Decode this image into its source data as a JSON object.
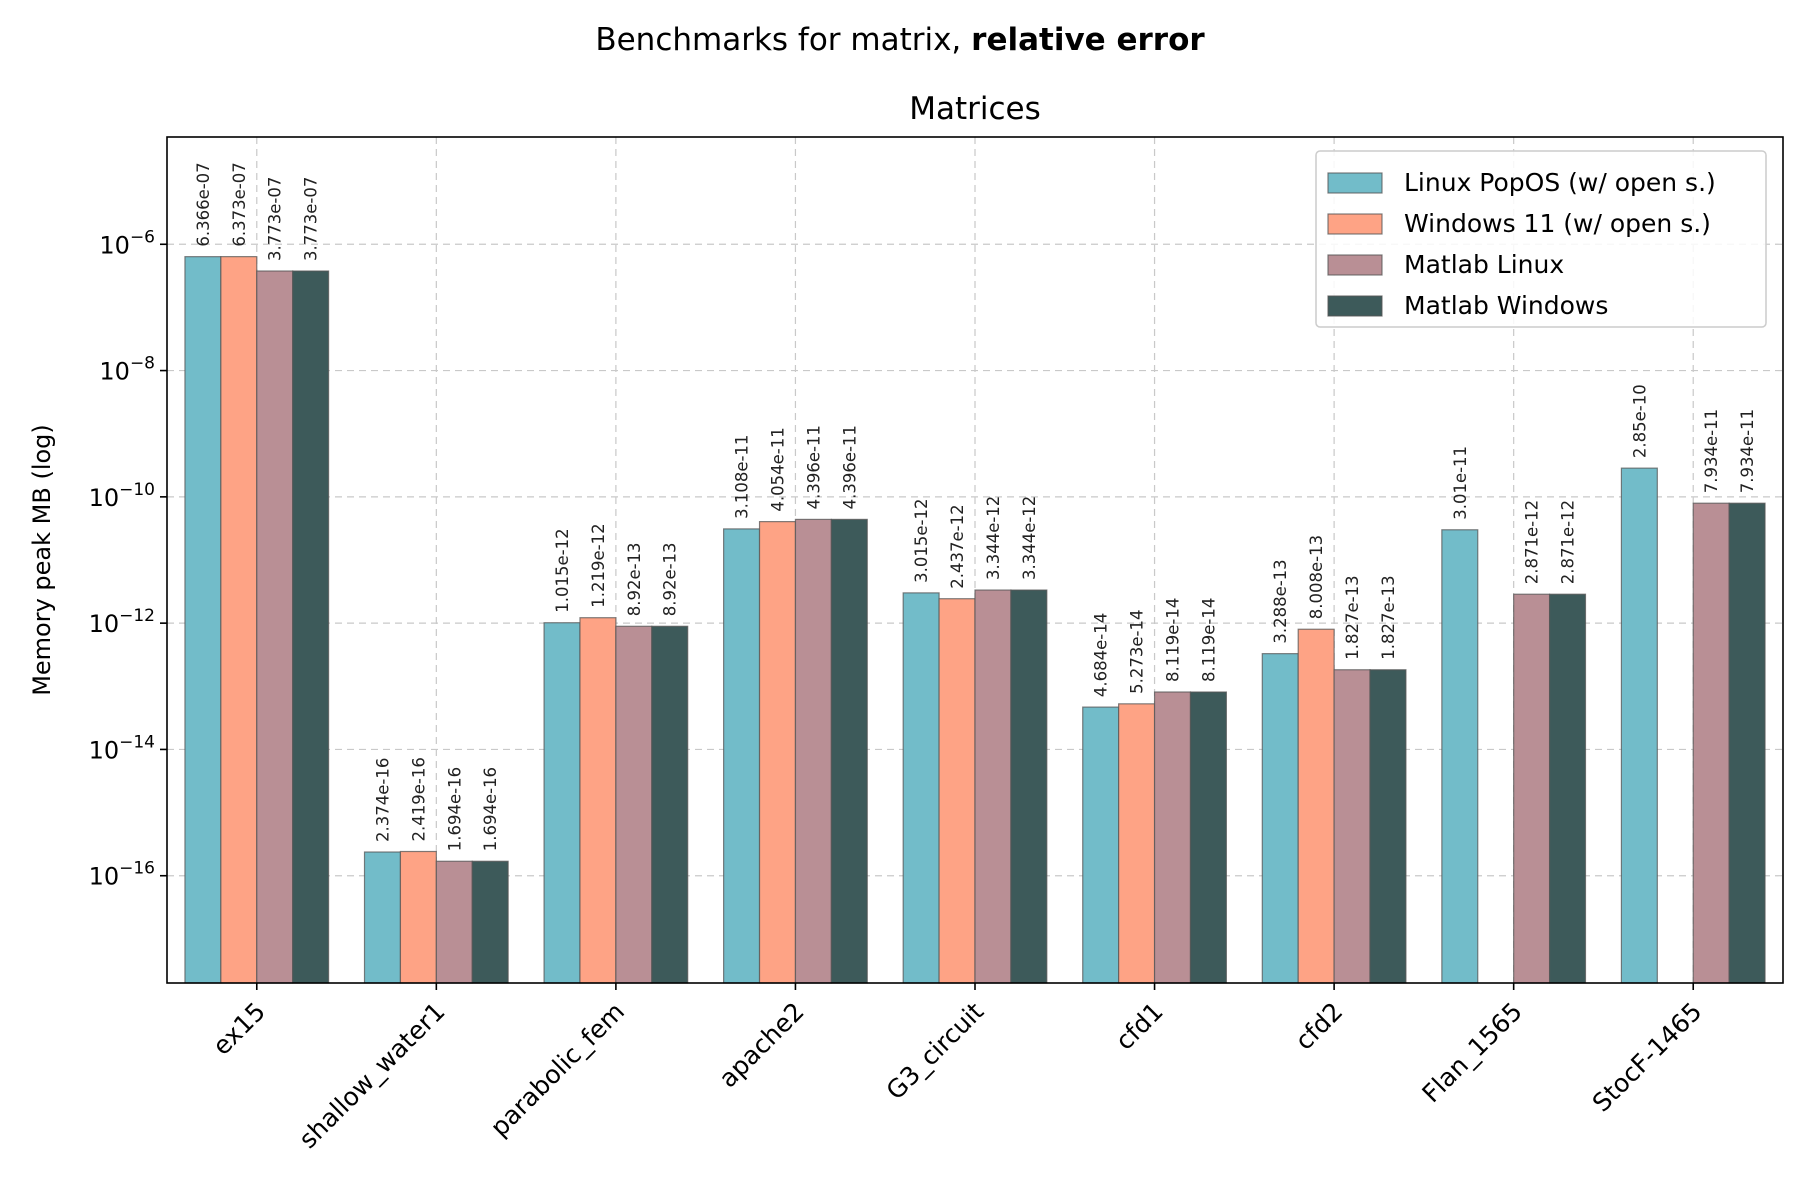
{
  "chart_data": {
    "type": "bar",
    "suptitle": {
      "normal": "Benchmarks for matrix, ",
      "bold": "relative error"
    },
    "title": "Matrices",
    "xlabel": "",
    "ylabel": "Memory peak MB (log)",
    "yscale": "log",
    "ylim": [
      2e-18,
      5e-05
    ],
    "yticks": [
      {
        "value": 1e-06,
        "base": "10",
        "exp": "−6"
      },
      {
        "value": 1e-08,
        "base": "10",
        "exp": "−8"
      },
      {
        "value": 1e-10,
        "base": "10",
        "exp": "−10"
      },
      {
        "value": 1e-12,
        "base": "10",
        "exp": "−12"
      },
      {
        "value": 1e-14,
        "base": "10",
        "exp": "−14"
      },
      {
        "value": 1e-16,
        "base": "10",
        "exp": "−16"
      }
    ],
    "grid": true,
    "legend_position": "top-right",
    "categories": [
      "ex15",
      "shallow_water1",
      "parabolic_fem",
      "apache2",
      "G3_circuit",
      "cfd1",
      "cfd2",
      "Flan_1565",
      "StocF-1465"
    ],
    "series": [
      {
        "name": "Linux PopOS (w/ open s.)",
        "color": "#72bcc9",
        "values": [
          6.366e-07,
          2.374e-16,
          1.015e-12,
          3.108e-11,
          3.015e-12,
          4.684e-14,
          3.288e-13,
          3.01e-11,
          2.85e-10
        ],
        "labels": [
          "6.366e-07",
          "2.374e-16",
          "1.015e-12",
          "3.108e-11",
          "3.015e-12",
          "4.684e-14",
          "3.288e-13",
          "3.01e-11",
          "2.85e-10"
        ]
      },
      {
        "name": "Windows 11 (w/ open s.)",
        "color": "#fea385",
        "values": [
          6.373e-07,
          2.419e-16,
          1.219e-12,
          4.054e-11,
          2.437e-12,
          5.273e-14,
          8.008e-13,
          null,
          null
        ],
        "labels": [
          "6.373e-07",
          "2.419e-16",
          "1.219e-12",
          "4.054e-11",
          "2.437e-12",
          "5.273e-14",
          "8.008e-13",
          null,
          null
        ]
      },
      {
        "name": "Matlab Linux",
        "color": "#b98f95",
        "values": [
          3.773e-07,
          1.694e-16,
          8.92e-13,
          4.396e-11,
          3.344e-12,
          8.119e-14,
          1.827e-13,
          2.871e-12,
          7.934e-11
        ],
        "labels": [
          "3.773e-07",
          "1.694e-16",
          "8.92e-13",
          "4.396e-11",
          "3.344e-12",
          "8.119e-14",
          "1.827e-13",
          "2.871e-12",
          "7.934e-11"
        ]
      },
      {
        "name": "Matlab Windows",
        "color": "#3d5a5a",
        "values": [
          3.773e-07,
          1.694e-16,
          8.92e-13,
          4.396e-11,
          3.344e-12,
          8.119e-14,
          1.827e-13,
          2.871e-12,
          7.934e-11
        ],
        "labels": [
          "3.773e-07",
          "1.694e-16",
          "8.92e-13",
          "4.396e-11",
          "3.344e-12",
          "8.119e-14",
          "1.827e-13",
          "2.871e-12",
          "7.934e-11"
        ]
      }
    ]
  }
}
